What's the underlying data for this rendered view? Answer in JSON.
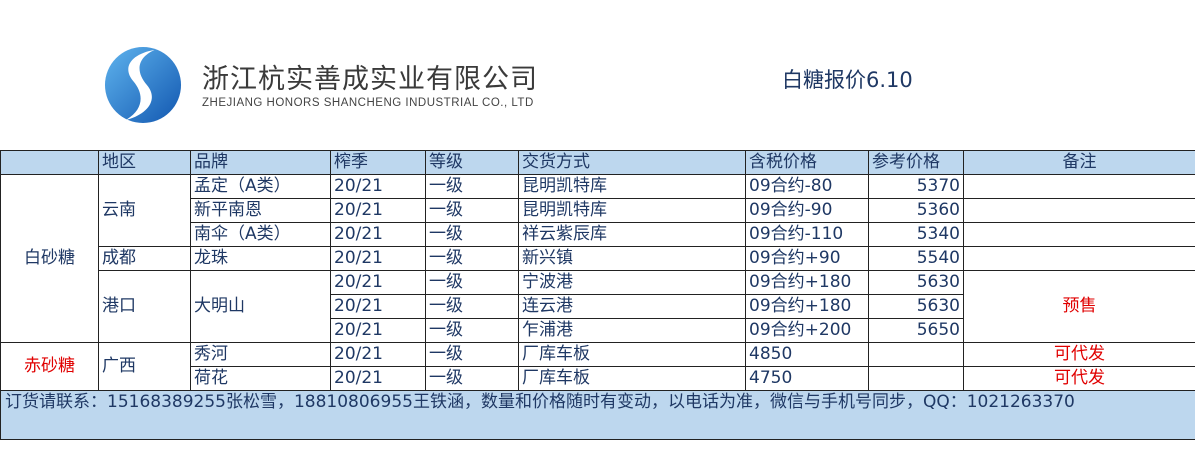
{
  "header": {
    "company_cn": "浙江杭实善成实业有限公司",
    "company_en": "ZHEJIANG HONORS SHANCHENG INDUSTRIAL CO., LTD",
    "title": "白糖报价6.10",
    "brand_color": "#1e73c8"
  },
  "table": {
    "columns": [
      "",
      "地区",
      "品牌",
      "榨季",
      "等级",
      "交货方式",
      "含税价格",
      "参考价格",
      "备注"
    ],
    "groups": {
      "white": "白砂糖",
      "red": "赤砂糖"
    },
    "regions": {
      "yunnan": "云南",
      "chengdu": "成都",
      "port": "港口",
      "guangxi": "广西"
    },
    "rows": [
      {
        "brand": "孟定（A类）",
        "season": "20/21",
        "grade": "一级",
        "delivery": "昆明凯特库",
        "tax_price": "09合约-80",
        "ref_price": "5370",
        "note": ""
      },
      {
        "brand": "新平南恩",
        "season": "20/21",
        "grade": "一级",
        "delivery": "昆明凯特库",
        "tax_price": "09合约-90",
        "ref_price": "5360",
        "note": ""
      },
      {
        "brand": "南伞（A类）",
        "season": "20/21",
        "grade": "一级",
        "delivery": "祥云紫辰库",
        "tax_price": "09合约-110",
        "ref_price": "5340",
        "note": ""
      },
      {
        "brand": "龙珠",
        "season": "20/21",
        "grade": "一级",
        "delivery": "新兴镇",
        "tax_price": "09合约+90",
        "ref_price": "5540",
        "note": ""
      },
      {
        "brand": "大明山",
        "season": "20/21",
        "grade": "一级",
        "delivery": "宁波港",
        "tax_price": "09合约+180",
        "ref_price": "5630",
        "note": "预售"
      },
      {
        "brand": "",
        "season": "20/21",
        "grade": "一级",
        "delivery": "连云港",
        "tax_price": "09合约+180",
        "ref_price": "5630",
        "note": ""
      },
      {
        "brand": "",
        "season": "20/21",
        "grade": "一级",
        "delivery": "乍浦港",
        "tax_price": "09合约+200",
        "ref_price": "5650",
        "note": ""
      },
      {
        "brand": "秀河",
        "season": "20/21",
        "grade": "一级",
        "delivery": "厂库车板",
        "tax_price": "4850",
        "ref_price": "",
        "note": "可代发"
      },
      {
        "brand": "荷花",
        "season": "20/21",
        "grade": "一级",
        "delivery": "厂库车板",
        "tax_price": "4750",
        "ref_price": "",
        "note": "可代发"
      }
    ],
    "footer": "订货请联系：15168389255张松雪，18810806955王铁涵，数量和价格随时有变动，以电话为准，微信与手机号同步，QQ：1021263370"
  }
}
